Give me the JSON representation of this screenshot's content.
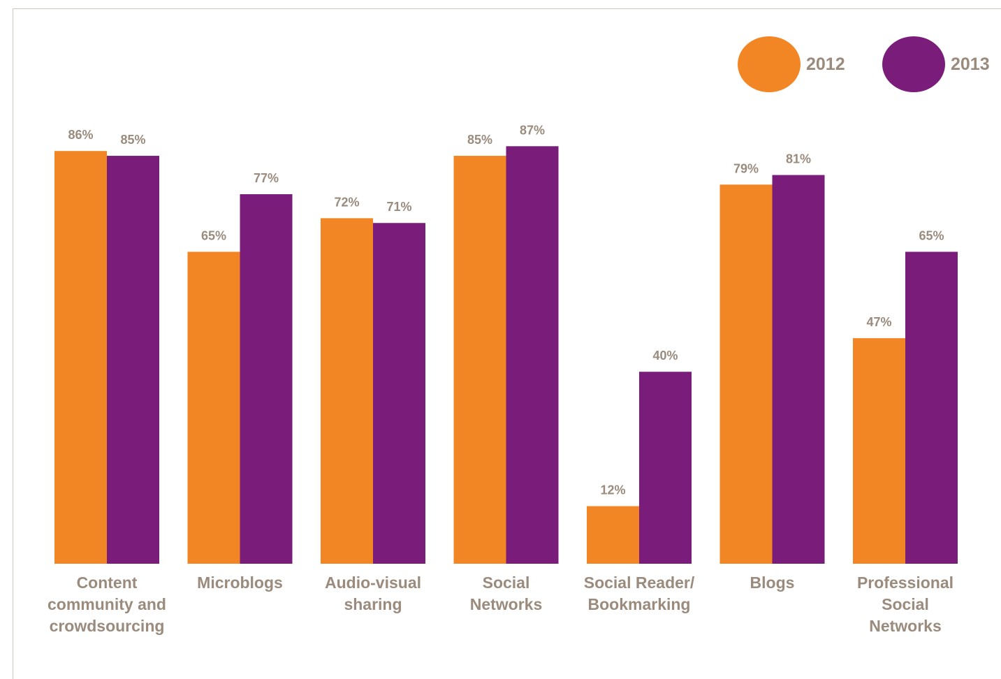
{
  "chart_data": {
    "type": "bar",
    "categories": [
      [
        "Content",
        "community and",
        "crowdsourcing"
      ],
      [
        "Microblogs"
      ],
      [
        "Audio-visual",
        "sharing"
      ],
      [
        "Social",
        "Networks"
      ],
      [
        "Social Reader/",
        "Bookmarking"
      ],
      [
        "Blogs"
      ],
      [
        "Professional",
        "Social",
        "Networks"
      ]
    ],
    "series": [
      {
        "name": "2012",
        "color": "#f28524",
        "values": [
          86,
          65,
          72,
          85,
          12,
          79,
          47
        ],
        "labels": [
          "86%",
          "65%",
          "72%",
          "85%",
          "12%",
          "79%",
          "47%"
        ]
      },
      {
        "name": "2013",
        "color": "#7a1c79",
        "values": [
          85,
          77,
          71,
          87,
          40,
          81,
          65
        ],
        "labels": [
          "85%",
          "77%",
          "71%",
          "87%",
          "40%",
          "81%",
          "65%"
        ]
      }
    ],
    "ylim": [
      0,
      100
    ],
    "grid": false,
    "legend": "top-right",
    "title": "",
    "xlabel": "",
    "ylabel": ""
  },
  "legend": {
    "items": [
      {
        "label": "2012",
        "color": "#f28524"
      },
      {
        "label": "2013",
        "color": "#7a1c79"
      }
    ]
  }
}
